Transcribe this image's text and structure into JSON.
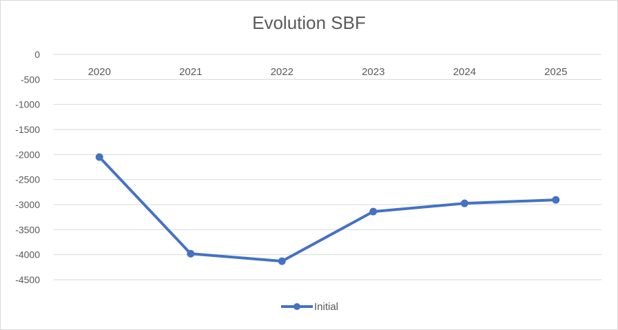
{
  "chart_data": {
    "type": "line",
    "title": "Evolution SBF",
    "categories": [
      "2020",
      "2021",
      "2022",
      "2023",
      "2024",
      "2025"
    ],
    "series": [
      {
        "name": "Initial",
        "values": [
          -2050,
          -3980,
          -4130,
          -3140,
          -2975,
          -2905
        ]
      }
    ],
    "ylim": [
      -4500,
      0
    ],
    "yticks": [
      0,
      -500,
      -1000,
      -1500,
      -2000,
      -2500,
      -3000,
      -3500,
      -4000,
      -4500
    ],
    "xlabel": "",
    "ylabel": "",
    "grid": true,
    "legend": "bottom",
    "x_axis_position": "top",
    "colors": {
      "series": "#4472c4",
      "grid": "#d9d9d9",
      "text": "#595959"
    }
  }
}
